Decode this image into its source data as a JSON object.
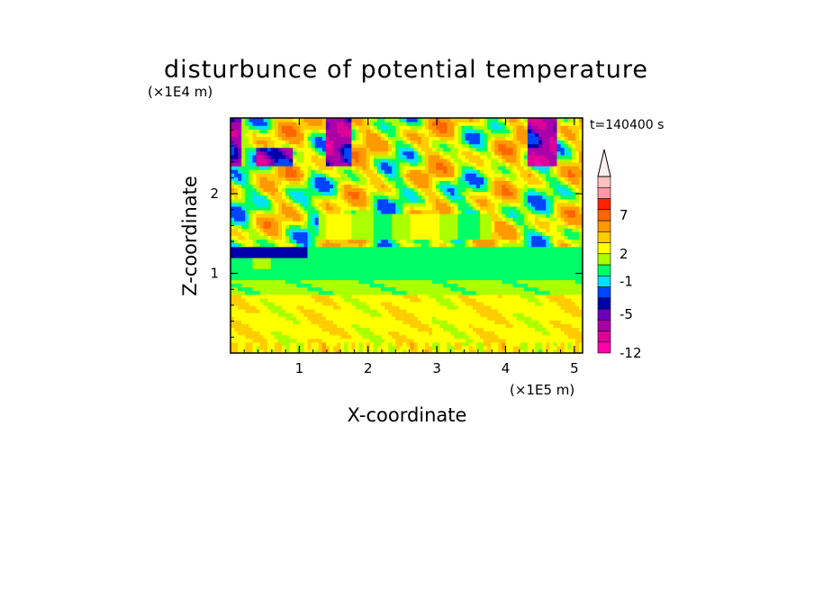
{
  "chart_data": {
    "type": "heatmap",
    "title": "disturbunce of potential temperature",
    "time_label": "t=140400 s",
    "xlabel": "X-coordinate",
    "ylabel": "Z-coordinate",
    "x_unit": "(×1E5 m)",
    "y_unit": "(×1E4 m)",
    "xlim": [
      0,
      5.12
    ],
    "ylim": [
      0,
      2.95
    ],
    "x_ticks": [
      "1",
      "2",
      "3",
      "4",
      "5"
    ],
    "y_ticks": [
      "1",
      "2"
    ],
    "colorbar": {
      "levels": [
        "-12",
        "-5",
        "-1",
        "2",
        "7"
      ],
      "colors": [
        "#ff00aa",
        "#dd0099",
        "#aa00aa",
        "#6a00bb",
        "#0000aa",
        "#0044ff",
        "#00e0ff",
        "#00ff66",
        "#aaff00",
        "#ffff00",
        "#ffcc00",
        "#ff9900",
        "#ff6600",
        "#ff2200",
        "#ff99aa",
        "#ffc0c0"
      ],
      "extend": "max"
    },
    "field_description_bands": [
      {
        "z_range": [
          0.0,
          0.75
        ],
        "dominant_values": "1 to 3"
      },
      {
        "z_range": [
          0.75,
          0.9
        ],
        "dominant_values": "0 to 1"
      },
      {
        "z_range": [
          0.9,
          1.35
        ],
        "dominant_values": "-1 to 0"
      },
      {
        "z_range": [
          1.35,
          2.95
        ],
        "dominant_values": "-5 to 7, wave pattern"
      }
    ]
  }
}
